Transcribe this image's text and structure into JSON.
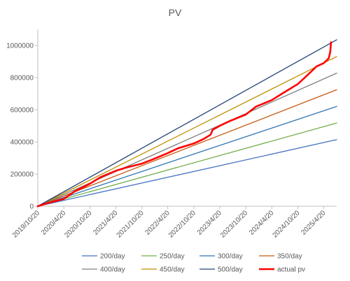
{
  "chart_data": {
    "type": "line",
    "title": "PV",
    "xlabel": "",
    "ylabel": "",
    "x_range": [
      "2019-10-20",
      "2025-07-20"
    ],
    "ylim": [
      0,
      1100000
    ],
    "y_ticks": [
      0,
      200000,
      400000,
      600000,
      800000,
      1000000
    ],
    "y_tick_labels": [
      "0",
      "200000",
      "400000",
      "600000",
      "800000",
      "1000000"
    ],
    "x_ticks": [
      "2019-10-20",
      "2020-04-20",
      "2020-10-20",
      "2021-04-20",
      "2021-10-20",
      "2022-04-20",
      "2022-10-20",
      "2023-04-20",
      "2023-10-20",
      "2024-04-20",
      "2024-10-20",
      "2025-04-20"
    ],
    "x_tick_labels": [
      "2019/10/20",
      "2020/4/20",
      "2020/10/20",
      "2021/4/20",
      "2021/10/20",
      "2022/4/20",
      "2022/10/20",
      "2023/4/20",
      "2023/10/20",
      "2024/4/20",
      "2024/10/20",
      "2025/4/20"
    ],
    "grid": false,
    "legend_position": "bottom",
    "series": [
      {
        "name": "200/day",
        "color": "#4472C4",
        "width": 1.3,
        "x": [
          "2019-10-20",
          "2025-07-20"
        ],
        "y": [
          0,
          414000
        ]
      },
      {
        "name": "250/day",
        "color": "#70AD47",
        "width": 1.3,
        "x": [
          "2019-10-20",
          "2025-07-20"
        ],
        "y": [
          0,
          517500
        ]
      },
      {
        "name": "300/day",
        "color": "#2E75B6",
        "width": 1.3,
        "x": [
          "2019-10-20",
          "2025-07-20"
        ],
        "y": [
          0,
          621000
        ]
      },
      {
        "name": "350/day",
        "color": "#C55A11",
        "width": 1.3,
        "x": [
          "2019-10-20",
          "2025-07-20"
        ],
        "y": [
          0,
          724500
        ]
      },
      {
        "name": "400/day",
        "color": "#7F7F7F",
        "width": 1.3,
        "x": [
          "2019-10-20",
          "2025-07-20"
        ],
        "y": [
          0,
          828000
        ]
      },
      {
        "name": "450/day",
        "color": "#BF8F00",
        "width": 1.3,
        "x": [
          "2019-10-20",
          "2025-07-20"
        ],
        "y": [
          0,
          931500
        ]
      },
      {
        "name": "500/day",
        "color": "#264478",
        "width": 1.3,
        "x": [
          "2019-10-20",
          "2025-07-20"
        ],
        "y": [
          0,
          1035000
        ]
      },
      {
        "name": "actual pv",
        "color": "#FF0000",
        "width": 2.6,
        "x": [
          "2019-10-20",
          "2020-01-01",
          "2020-04-20",
          "2020-07-01",
          "2020-10-20",
          "2021-01-01",
          "2021-04-20",
          "2021-07-01",
          "2021-10-20",
          "2022-01-01",
          "2022-04-20",
          "2022-07-01",
          "2022-10-20",
          "2023-01-01",
          "2023-02-15",
          "2023-03-01",
          "2023-04-20",
          "2023-07-01",
          "2023-10-20",
          "2024-01-01",
          "2024-04-20",
          "2024-07-01",
          "2024-10-20",
          "2025-01-01",
          "2025-03-01",
          "2025-04-20",
          "2025-05-25",
          "2025-06-05",
          "2025-06-10"
        ],
        "y": [
          0,
          20000,
          45000,
          90000,
          140000,
          180000,
          220000,
          240000,
          265000,
          290000,
          330000,
          360000,
          390000,
          420000,
          445000,
          475000,
          500000,
          530000,
          570000,
          620000,
          660000,
          700000,
          760000,
          820000,
          870000,
          890000,
          920000,
          960000,
          1020000
        ]
      }
    ]
  }
}
